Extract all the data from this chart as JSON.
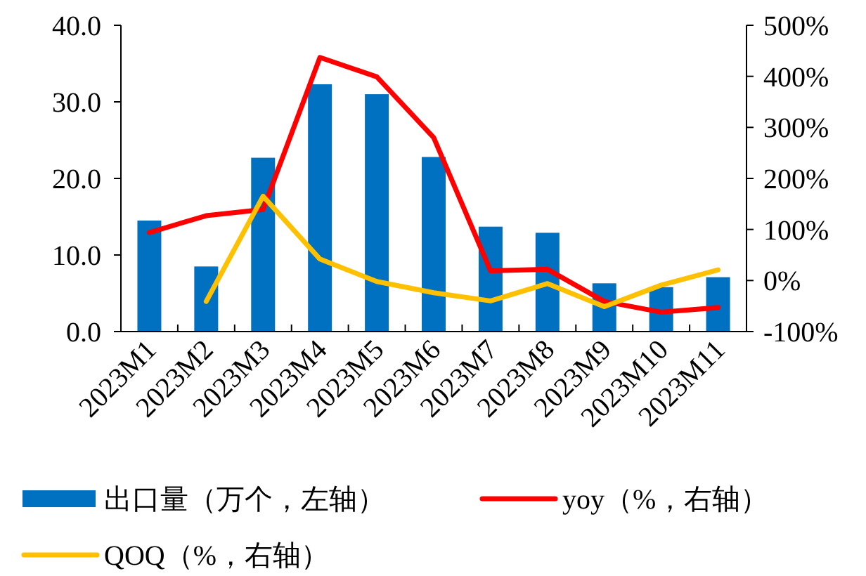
{
  "chart_data": {
    "type": "bar",
    "categories": [
      "2023M1",
      "2023M2",
      "2023M3",
      "2023M4",
      "2023M5",
      "2023M6",
      "2023M7",
      "2023M8",
      "2023M9",
      "2023M10",
      "2023M11"
    ],
    "series": [
      {
        "name": "出口量（万个，左轴）",
        "color": "#0070c0",
        "values": [
          14.5,
          8.5,
          22.7,
          32.3,
          31.0,
          22.8,
          13.7,
          12.9,
          6.3,
          5.8,
          7.1
        ]
      },
      {
        "name": "yoy（%，右轴）",
        "type": "line",
        "axis": "y2",
        "color": "#ff0000",
        "values": [
          94,
          127,
          139,
          437,
          399,
          280,
          19,
          22,
          -41,
          -62,
          -53
        ]
      },
      {
        "name": "QOQ（%，右轴）",
        "type": "line",
        "axis": "y2",
        "color": "#ffc000",
        "values": [
          null,
          -41,
          165,
          42,
          -2,
          -24,
          -40,
          -6,
          -51,
          -9,
          21
        ]
      }
    ],
    "ylim": [
      0,
      40
    ],
    "yticks": [
      {
        "value": 0,
        "label": "0.0"
      },
      {
        "value": 10,
        "label": "10.0"
      },
      {
        "value": 20,
        "label": "20.0"
      },
      {
        "value": 30,
        "label": "30.0"
      },
      {
        "value": 40,
        "label": "40.0"
      }
    ],
    "y2lim": [
      -100,
      500
    ],
    "y2ticks": [
      {
        "value": -100,
        "label": "-100%"
      },
      {
        "value": 0,
        "label": "0%"
      },
      {
        "value": 100,
        "label": "100%"
      },
      {
        "value": 200,
        "label": "200%"
      },
      {
        "value": 300,
        "label": "300%"
      },
      {
        "value": 400,
        "label": "400%"
      },
      {
        "value": 500,
        "label": "500%"
      }
    ],
    "grid": false,
    "legend": "bottom",
    "marker": "none",
    "line_style": "solid"
  }
}
